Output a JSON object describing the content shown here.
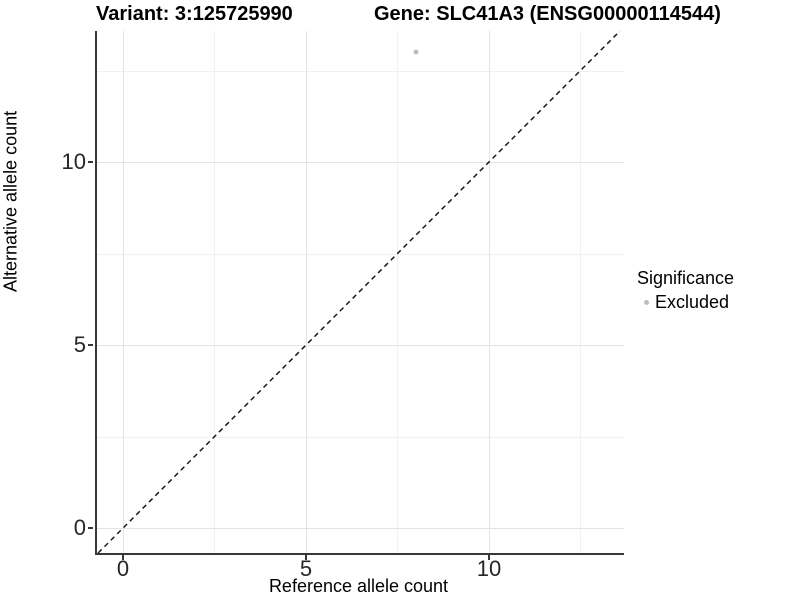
{
  "header": {
    "variant_title": "Variant: 3:125725990",
    "gene_title": "Gene: SLC41A3 (ENSG00000114544)"
  },
  "chart_data": {
    "type": "scatter",
    "title": "Variant: 3:125725990  |  Gene: SLC41A3 (ENSG00000114544)",
    "xlabel": "Reference allele count",
    "ylabel": "Alternative allele count",
    "xlim": [
      -0.71,
      13.69
    ],
    "ylim": [
      -0.68,
      13.58
    ],
    "x_major_ticks": [
      0,
      5,
      10
    ],
    "y_major_ticks": [
      0,
      5,
      10
    ],
    "x_minor_gridlines": [
      2.5,
      7.5,
      12.5
    ],
    "y_minor_gridlines": [
      2.5,
      7.5,
      12.5
    ],
    "grid": "major+minor",
    "series": [
      {
        "name": "Excluded",
        "marker": "circle",
        "color": "#bdbdbd",
        "points": [
          {
            "x": 8,
            "y": 13
          }
        ]
      }
    ],
    "reference_line": {
      "type": "identity",
      "slope": 1,
      "intercept": 0,
      "style": "dashed",
      "color": "#1a1a1a"
    },
    "legend": {
      "title": "Significance",
      "position": "right",
      "items": [
        {
          "label": "Excluded",
          "marker": "circle",
          "color": "#bdbdbd"
        }
      ]
    }
  },
  "colors": {
    "background": "#ffffff",
    "grid_major": "#e4e4e4",
    "grid_minor": "#f1f1f1",
    "axis_line": "#383838",
    "tick_text": "#262626",
    "title_text": "#000000",
    "point": "#bdbdbd"
  }
}
